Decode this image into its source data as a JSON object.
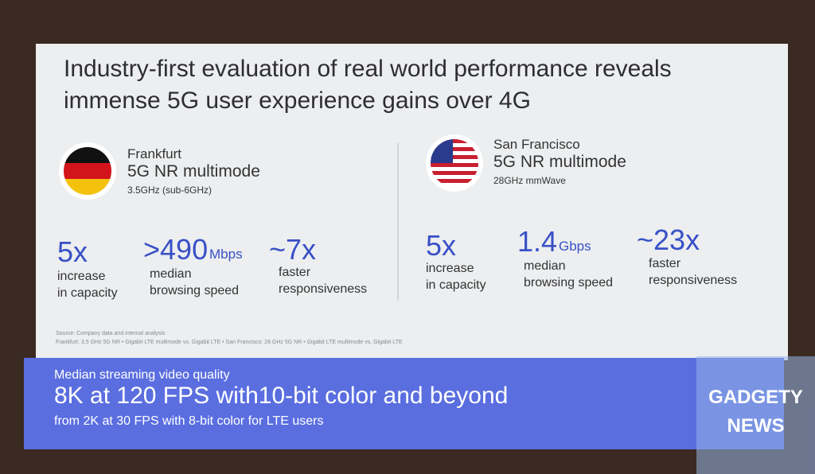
{
  "header": {
    "title_lines": [
      "Industry-first evaluation of real world performance reveals",
      "immense 5G user experience gains over 4G"
    ]
  },
  "cities": [
    {
      "name": "Frankfurt",
      "tech": "5G NR multimode",
      "band": "3.5GHz (sub-6GHz)",
      "stats": [
        {
          "value": "5x",
          "unit": "",
          "lines": [
            "increase",
            "in capacity"
          ]
        },
        {
          "value": ">490",
          "unit": "Mbps",
          "lines": [
            "median",
            "browsing speed"
          ]
        },
        {
          "value": "~7x",
          "unit": "",
          "lines": [
            "faster",
            "responsiveness"
          ]
        }
      ]
    },
    {
      "name": "San Francisco",
      "tech": "5G NR multimode",
      "band": "28GHz mmWave",
      "stats": [
        {
          "value": "5x",
          "unit": "",
          "lines": [
            "increase",
            "in capacity"
          ]
        },
        {
          "value": "1.4",
          "unit": "Gbps",
          "lines": [
            "median",
            "browsing speed"
          ]
        },
        {
          "value": "~23x",
          "unit": "",
          "lines": [
            "faster",
            "responsiveness"
          ]
        }
      ]
    }
  ],
  "source_lines": [
    "Source: Company data and internal analysis",
    "Frankfurt: 3.5 GHz 5G NR • Gigabit LTE multimode vs. Gigabit LTE • San Francisco: 28 GHz 5G NR • Gigabit LTE multimode vs. Gigabit LTE"
  ],
  "banner": {
    "label": "Median streaming video quality",
    "headline": "8K at 120 FPS with10-bit color and beyond",
    "subline": "from 2K at 30 FPS with 8-bit color for LTE users"
  },
  "watermark": [
    "GADGETY",
    "NEWS"
  ]
}
